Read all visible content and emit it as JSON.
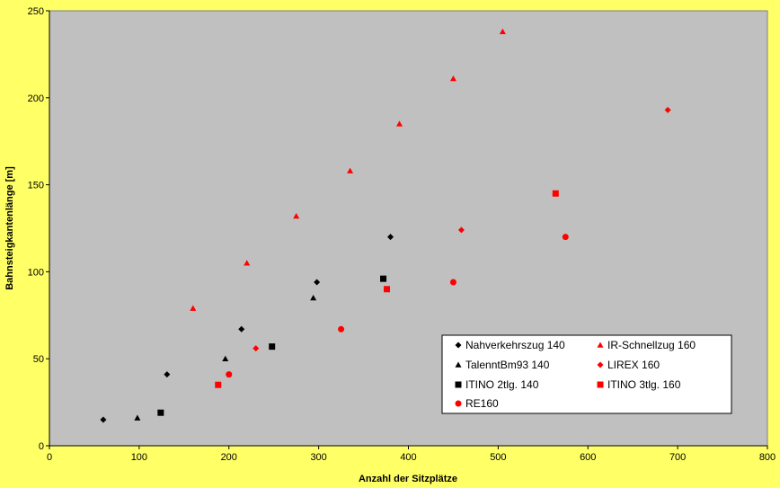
{
  "chart_data": {
    "type": "scatter",
    "title": "",
    "xlabel": "Anzahl der Sitzplätze",
    "ylabel": "Bahnsteigkantenlänge [m]",
    "xlim": [
      0,
      800
    ],
    "ylim": [
      0,
      250
    ],
    "xticks": [
      0,
      100,
      200,
      300,
      400,
      500,
      600,
      700,
      800
    ],
    "yticks": [
      0,
      50,
      100,
      150,
      200,
      250
    ],
    "grid": false,
    "legend_position": "bottom-right",
    "plot_background": "#C0C0C0",
    "page_background": "#FFFF66",
    "series": [
      {
        "name": "Nahverkehrszug 140",
        "marker": "diamond",
        "color": "#000000",
        "points": [
          [
            60,
            15
          ],
          [
            131,
            41
          ],
          [
            214,
            67
          ],
          [
            298,
            94
          ],
          [
            380,
            120
          ]
        ]
      },
      {
        "name": "IR-Schnellzug 160",
        "marker": "triangle",
        "color": "#FF0000",
        "points": [
          [
            160,
            79
          ],
          [
            220,
            105
          ],
          [
            275,
            132
          ],
          [
            335,
            158
          ],
          [
            390,
            185
          ],
          [
            450,
            211
          ],
          [
            505,
            238
          ]
        ]
      },
      {
        "name": "TalenntBm93 140",
        "marker": "triangle",
        "color": "#000000",
        "points": [
          [
            98,
            16
          ],
          [
            196,
            50
          ],
          [
            294,
            85
          ]
        ]
      },
      {
        "name": "LIREX 160",
        "marker": "diamond",
        "color": "#FF0000",
        "points": [
          [
            230,
            56
          ],
          [
            459,
            124
          ],
          [
            689,
            193
          ]
        ]
      },
      {
        "name": "ITINO 2tlg. 140",
        "marker": "square",
        "color": "#000000",
        "points": [
          [
            124,
            19
          ],
          [
            248,
            57
          ],
          [
            372,
            96
          ]
        ]
      },
      {
        "name": "ITINO 3tlg. 160",
        "marker": "square",
        "color": "#FF0000",
        "points": [
          [
            188,
            35
          ],
          [
            376,
            90
          ],
          [
            564,
            145
          ]
        ]
      },
      {
        "name": "RE160",
        "marker": "circle",
        "color": "#FF0000",
        "points": [
          [
            200,
            41
          ],
          [
            325,
            67
          ],
          [
            450,
            94
          ],
          [
            575,
            120
          ]
        ]
      }
    ]
  }
}
